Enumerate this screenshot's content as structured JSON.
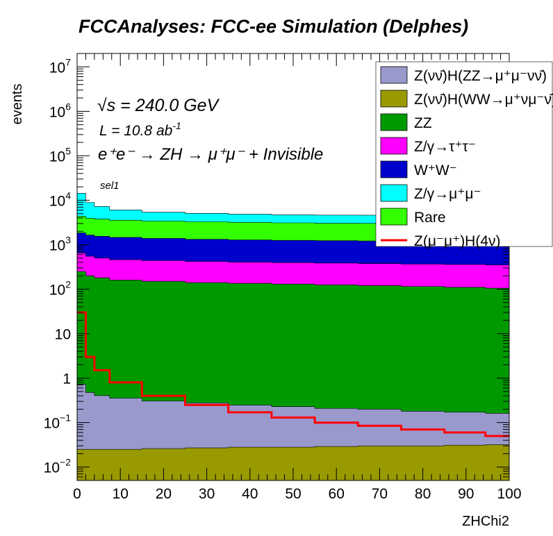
{
  "chart_data": {
    "type": "area",
    "title": "FCCAnalyses: FCC-ee Simulation (Delphes)",
    "xlabel": "ZHChi2",
    "ylabel": "events",
    "xlim": [
      0,
      100
    ],
    "ylim": [
      0.005,
      20000000
    ],
    "yscale": "log",
    "stacked": true,
    "x_ticks": [
      0,
      10,
      20,
      30,
      40,
      50,
      60,
      70,
      80,
      90,
      100
    ],
    "annotations": {
      "energy": "√s = 240.0 GeV",
      "lumi": "L = 10.8 ab",
      "lumi_exp": "-1",
      "process": "e⁺e⁻ → ZH → μ⁺μ⁻ + Invisible",
      "selection": "sel1"
    },
    "legend_position": "top-right",
    "x": [
      1,
      3,
      5,
      10,
      20,
      30,
      40,
      50,
      60,
      70,
      80,
      90,
      99
    ],
    "series": [
      {
        "name": "Z(νν̄)H(ZZ→μ⁺μ⁻νν̄)",
        "color": "#9999cc",
        "style": "fill",
        "values": [
          0.7,
          0.45,
          0.38,
          0.33,
          0.28,
          0.25,
          0.22,
          0.2,
          0.18,
          0.17,
          0.15,
          0.14,
          0.13
        ]
      },
      {
        "name": "Z(νν̄)H(WW→μ⁺νμ⁻ν̄)",
        "color": "#999900",
        "style": "fill",
        "values": [
          0.025,
          0.025,
          0.025,
          0.025,
          0.026,
          0.027,
          0.028,
          0.028,
          0.029,
          0.03,
          0.03,
          0.031,
          0.032
        ]
      },
      {
        "name": "W⁺W⁻",
        "color": "#0000cc",
        "style": "fill",
        "values": [
          1200,
          1100,
          1050,
          1000,
          950,
          900,
          880,
          860,
          850,
          840,
          830,
          820,
          800
        ]
      },
      {
        "name": "ZZ",
        "color": "#009900",
        "style": "fill",
        "values": [
          250,
          200,
          180,
          160,
          150,
          140,
          135,
          130,
          125,
          120,
          115,
          110,
          105
        ]
      },
      {
        "name": "Z/γ→μ⁺μ⁻",
        "color": "#00ffff",
        "style": "fill",
        "values": [
          10000,
          5000,
          3500,
          2500,
          2000,
          1800,
          1700,
          1600,
          1600,
          1600,
          1700,
          1800,
          2000
        ]
      },
      {
        "name": "Z/γ→τ⁺τ⁻",
        "color": "#ff00ff",
        "style": "fill",
        "values": [
          400,
          350,
          320,
          300,
          290,
          280,
          270,
          265,
          260,
          255,
          250,
          250,
          245
        ]
      },
      {
        "name": "Rare",
        "color": "#33ff00",
        "style": "fill",
        "values": [
          2500,
          2300,
          2200,
          2100,
          2000,
          1950,
          1900,
          1850,
          1800,
          1800,
          1800,
          1800,
          1800
        ]
      },
      {
        "name": "Z(μ⁻μ⁺)H(4ν)",
        "color": "#ff0000",
        "style": "line",
        "values": [
          30,
          3,
          1.5,
          0.8,
          0.4,
          0.25,
          0.17,
          0.13,
          0.1,
          0.085,
          0.07,
          0.06,
          0.05
        ]
      }
    ]
  }
}
